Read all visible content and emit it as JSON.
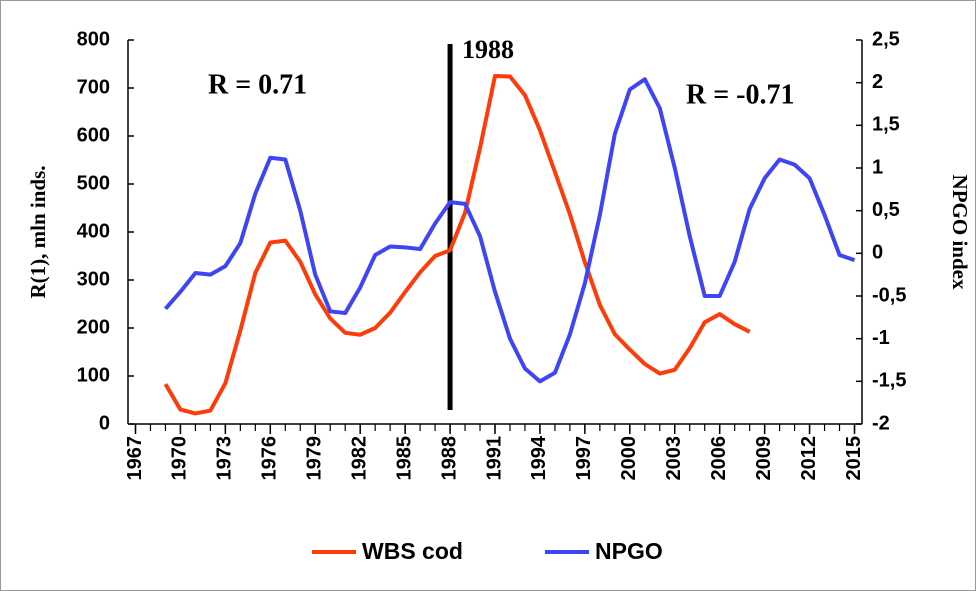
{
  "chart_data": {
    "type": "line",
    "y_label": "R(1), mln inds.",
    "y2_label": "NPGO index",
    "x": [
      1967,
      1968,
      1969,
      1970,
      1971,
      1972,
      1973,
      1974,
      1975,
      1976,
      1977,
      1978,
      1979,
      1980,
      1981,
      1982,
      1983,
      1984,
      1985,
      1986,
      1987,
      1988,
      1989,
      1990,
      1991,
      1992,
      1993,
      1994,
      1995,
      1996,
      1997,
      1998,
      1999,
      2000,
      2001,
      2002,
      2003,
      2004,
      2005,
      2006,
      2007,
      2008,
      2009,
      2010,
      2011,
      2012,
      2013,
      2014,
      2015
    ],
    "xlim": [
      1966.5,
      2015.5
    ],
    "xticks": [
      1967,
      1970,
      1973,
      1976,
      1979,
      1982,
      1985,
      1988,
      1991,
      1994,
      1997,
      2000,
      2003,
      2006,
      2009,
      2012,
      2015
    ],
    "ylim": [
      0,
      800
    ],
    "yticks": [
      0,
      100,
      200,
      300,
      400,
      500,
      600,
      700,
      800
    ],
    "y2lim": [
      -2,
      2.5
    ],
    "y2ticks": [
      -2,
      {
        "value": -1.5,
        "label": "-1,5"
      },
      -1,
      {
        "value": -0.5,
        "label": "-0,5"
      },
      0,
      {
        "value": 0.5,
        "label": "0,5"
      },
      1,
      {
        "value": 1.5,
        "label": "1,5"
      },
      2,
      {
        "value": 2.5,
        "label": "2,5"
      }
    ],
    "series": [
      {
        "name": "WBS cod",
        "color": "#ff3b0a",
        "values": [
          null,
          null,
          83,
          30,
          22,
          28,
          85,
          195,
          315,
          378,
          382,
          338,
          270,
          220,
          190,
          186,
          200,
          232,
          275,
          316,
          350,
          362,
          440,
          575,
          725,
          724,
          685,
          612,
          525,
          437,
          337,
          248,
          187,
          155,
          125,
          105,
          113,
          158,
          212,
          229,
          208,
          192,
          null,
          null,
          null,
          null,
          null,
          null,
          null
        ]
      },
      {
        "name": "NPGO",
        "color": "#3f45f5",
        "axis": "y2",
        "values": [
          null,
          null,
          -0.65,
          -0.45,
          -0.23,
          -0.25,
          -0.15,
          0.12,
          0.7,
          1.12,
          1.1,
          0.5,
          -0.25,
          -0.68,
          -0.7,
          -0.4,
          -0.02,
          0.08,
          0.07,
          0.05,
          0.35,
          0.6,
          0.58,
          0.2,
          -0.45,
          -1.0,
          -1.35,
          -1.5,
          -1.4,
          -0.95,
          -0.35,
          0.45,
          1.4,
          1.92,
          2.04,
          1.7,
          1.0,
          0.2,
          -0.5,
          -0.5,
          -0.1,
          0.52,
          0.88,
          1.1,
          1.04,
          0.88,
          0.45,
          -0.02,
          -0.08
        ]
      }
    ],
    "annotations": [
      {
        "text": "1988",
        "x": 1988
      },
      {
        "text": "R = 0.71",
        "color": "#f0303a"
      },
      {
        "text": "R = -0.71",
        "color": "#4a55e0"
      }
    ]
  }
}
